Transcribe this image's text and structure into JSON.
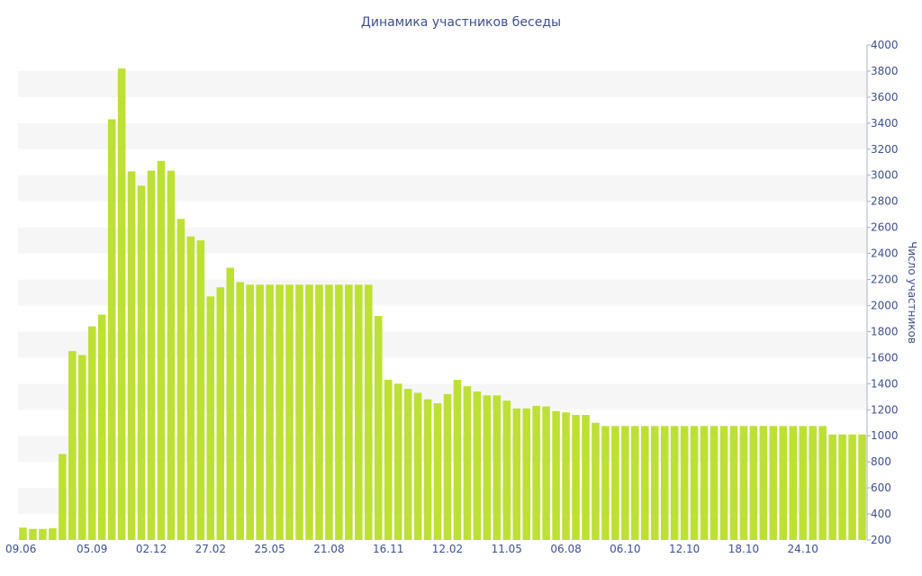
{
  "chart_data": {
    "type": "bar",
    "title": "Динамика участников беседы",
    "xlabel": "",
    "ylabel": "Число участников",
    "ylim": [
      200,
      4000
    ],
    "ytick_step": 200,
    "grid": "alternating horizontal bands",
    "bar_color": "#bde034",
    "band_color": "#f6f6f6",
    "text_color": "#3e4f8f",
    "x_ticks": [
      "09.06",
      "05.09",
      "02.12",
      "27.02",
      "25.05",
      "21.08",
      "16.11",
      "12.02",
      "11.05",
      "06.08",
      "06.10",
      "12.10",
      "18.10",
      "24.10"
    ],
    "x_tick_bar_index": [
      0,
      7,
      13,
      19,
      25,
      31,
      37,
      43,
      49,
      55,
      61,
      67,
      73,
      79
    ],
    "values": [
      295,
      285,
      285,
      290,
      860,
      1650,
      1620,
      1840,
      1930,
      3430,
      3820,
      3030,
      2920,
      3035,
      3110,
      3035,
      2665,
      2530,
      2500,
      2070,
      2140,
      2290,
      2180,
      2160,
      2160,
      2160,
      2160,
      2160,
      2160,
      2160,
      2160,
      2160,
      2160,
      2160,
      2160,
      2160,
      1920,
      1430,
      1400,
      1360,
      1330,
      1280,
      1250,
      1320,
      1430,
      1380,
      1340,
      1310,
      1310,
      1270,
      1210,
      1210,
      1230,
      1225,
      1190,
      1180,
      1160,
      1160,
      1100,
      1075,
      1075,
      1075,
      1075,
      1075,
      1075,
      1075,
      1075,
      1075,
      1075,
      1075,
      1075,
      1075,
      1075,
      1075,
      1075,
      1075,
      1075,
      1075,
      1075,
      1075,
      1075,
      1075,
      1010,
      1010,
      1010,
      1010
    ]
  }
}
